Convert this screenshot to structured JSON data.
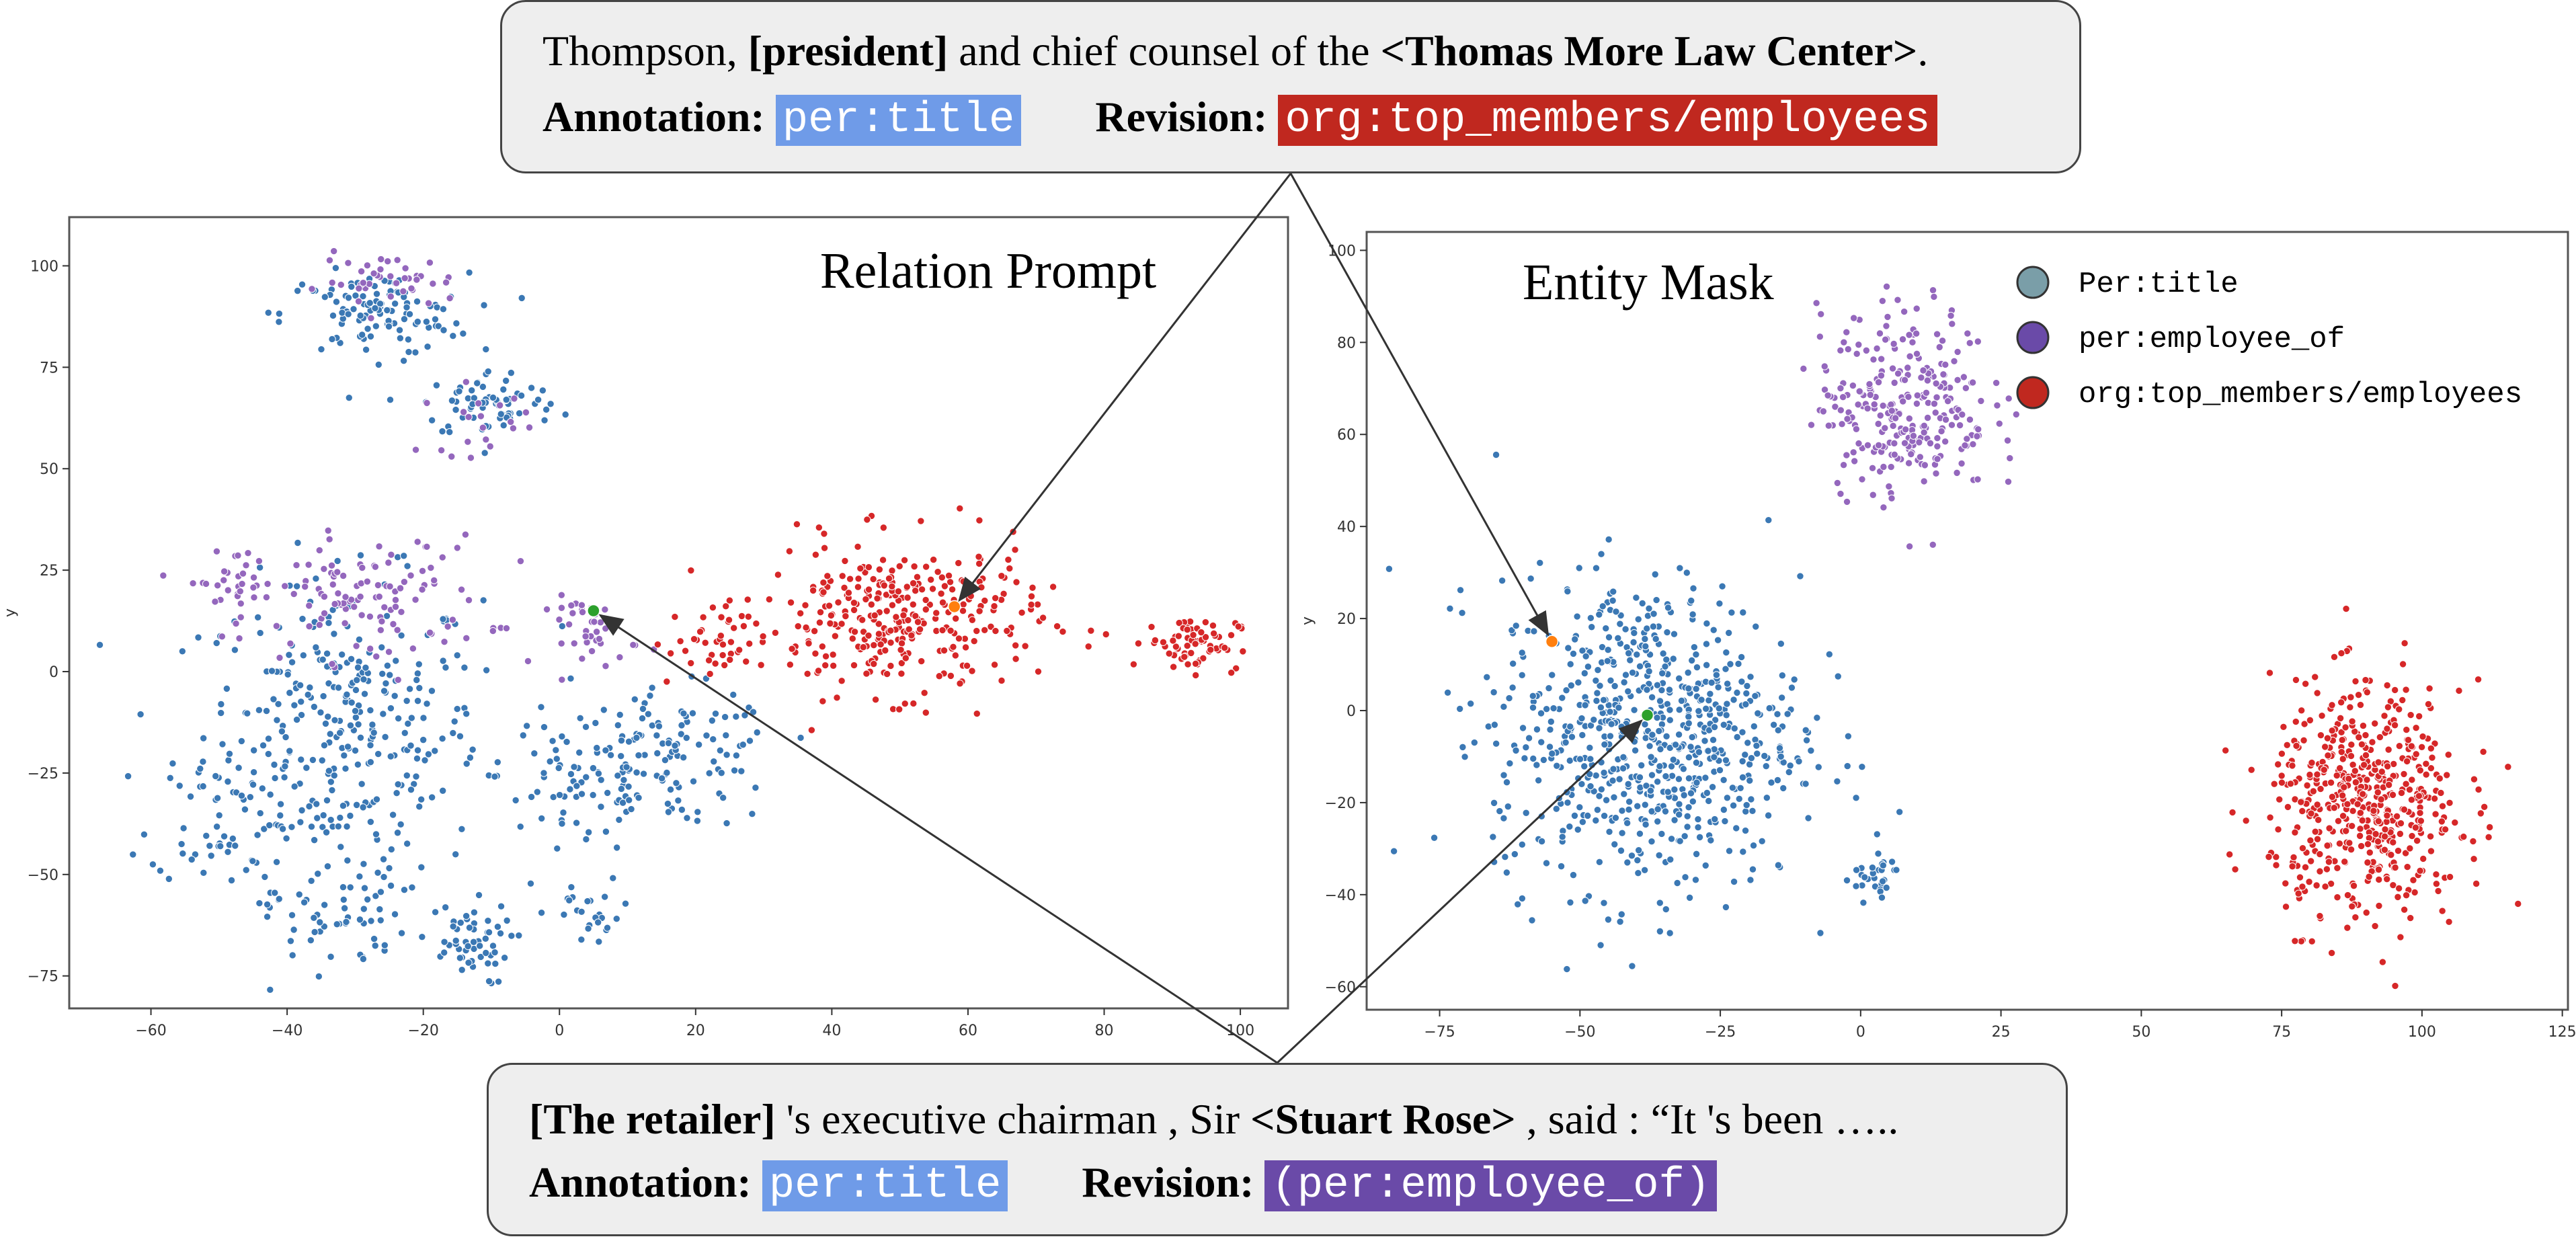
{
  "colors": {
    "blue": "#3b78b4",
    "purple": "#9467bd",
    "red": "#d62728",
    "green": "#2ca02c",
    "orange": "#ff7f0e",
    "annotation_tag": "#6f9be8",
    "revision_tag_red": "#c0281f",
    "revision_tag_purple": "#6a4aa8"
  },
  "top_callout": {
    "sentence_prefix": "Thompson, ",
    "sentence_subject": "[president]",
    "sentence_middle": " and chief counsel of the ",
    "sentence_object": "<Thomas More Law Center>",
    "sentence_suffix": ".",
    "annotation_label": "Annotation: ",
    "annotation_value": "per:title",
    "revision_label": "Revision: ",
    "revision_value": "org:top_members/employees"
  },
  "bottom_callout": {
    "sentence_subject": "[The retailer]",
    "sentence_middle": " 's executive chairman , Sir ",
    "sentence_object": "<Stuart Rose>",
    "sentence_suffix": " , said : “It 's been …..",
    "annotation_label": "Annotation: ",
    "annotation_value": "per:title",
    "revision_label": "Revision: ",
    "revision_value": "(per:employee_of)"
  },
  "chart_data": [
    {
      "type": "scatter",
      "title": "Relation Prompt",
      "xlabel": "",
      "ylabel": "y",
      "xlim": [
        -72,
        107
      ],
      "ylim": [
        -83,
        112
      ],
      "xticks": [
        "−60",
        "−40",
        "−20",
        "0",
        "20",
        "40",
        "60",
        "80",
        "100"
      ],
      "xtick_values": [
        -60,
        -40,
        -20,
        0,
        20,
        40,
        60,
        80,
        100
      ],
      "yticks": [
        "−75",
        "−50",
        "−25",
        "0",
        "25",
        "50",
        "75",
        "100"
      ],
      "ytick_values": [
        -75,
        -50,
        -25,
        0,
        25,
        50,
        75,
        100
      ],
      "clusters": [
        {
          "series": "per:title",
          "cx": -32,
          "cy": -15,
          "sx": 12,
          "sy": 22,
          "n": 330
        },
        {
          "series": "per:title",
          "cx": 3,
          "cy": -25,
          "sx": 7,
          "sy": 13,
          "n": 60
        },
        {
          "series": "per:title",
          "cx": 17,
          "cy": -22,
          "sx": 9,
          "sy": 10,
          "n": 120
        },
        {
          "series": "per:title",
          "cx": -27,
          "cy": 88,
          "sx": 8,
          "sy": 6,
          "n": 110
        },
        {
          "series": "per:title",
          "cx": -10,
          "cy": 66,
          "sx": 6,
          "sy": 5,
          "n": 70
        },
        {
          "series": "per:title",
          "cx": -50,
          "cy": -35,
          "sx": 6,
          "sy": 10,
          "n": 45
        },
        {
          "series": "per:title",
          "cx": -14,
          "cy": -67,
          "sx": 4,
          "sy": 6,
          "n": 55
        },
        {
          "series": "per:title",
          "cx": -33,
          "cy": -60,
          "sx": 6,
          "sy": 8,
          "n": 55
        },
        {
          "series": "per:title",
          "cx": 5,
          "cy": -60,
          "sx": 4,
          "sy": 5,
          "n": 25
        },
        {
          "series": "per:employee_of",
          "cx": -28,
          "cy": 18,
          "sx": 10,
          "sy": 9,
          "n": 110
        },
        {
          "series": "per:employee_of",
          "cx": -48,
          "cy": 22,
          "sx": 4,
          "sy": 5,
          "n": 30
        },
        {
          "series": "per:employee_of",
          "cx": -25,
          "cy": 96,
          "sx": 6,
          "sy": 4,
          "n": 40
        },
        {
          "series": "per:employee_of",
          "cx": 5,
          "cy": 10,
          "sx": 4,
          "sy": 5,
          "n": 40
        },
        {
          "series": "per:employee_of",
          "cx": -12,
          "cy": 62,
          "sx": 5,
          "sy": 5,
          "n": 20
        },
        {
          "series": "org:top_members/employees",
          "cx": 50,
          "cy": 13,
          "sx": 12,
          "sy": 11,
          "n": 320
        },
        {
          "series": "org:top_members/employees",
          "cx": 93,
          "cy": 7,
          "sx": 4,
          "sy": 4,
          "n": 70
        },
        {
          "series": "org:top_members/employees",
          "cx": 22,
          "cy": 7,
          "sx": 5,
          "sy": 6,
          "n": 40
        }
      ],
      "highlights": [
        {
          "name": "green-point",
          "x": 5,
          "y": 15
        },
        {
          "name": "orange-point",
          "x": 58,
          "y": 16
        }
      ]
    },
    {
      "type": "scatter",
      "title": "Entity Mask",
      "xlabel": "",
      "ylabel": "y",
      "xlim": [
        -88,
        126
      ],
      "ylim": [
        -65,
        104
      ],
      "xticks": [
        "−75",
        "−50",
        "−25",
        "0",
        "25",
        "50",
        "75",
        "100",
        "125"
      ],
      "xtick_values": [
        -75,
        -50,
        -25,
        0,
        25,
        50,
        75,
        100,
        125
      ],
      "yticks": [
        "−60",
        "−40",
        "−20",
        "0",
        "20",
        "40",
        "60",
        "80",
        "100"
      ],
      "ytick_values": [
        -60,
        -40,
        -20,
        0,
        20,
        40,
        60,
        80,
        100
      ],
      "legend_position": "top-right",
      "legend": [
        "Per:title",
        "per:employee_of",
        "org:top_members/employees"
      ],
      "legend_colors": [
        "#7a9ea8",
        "#6a4aa8",
        "#c0281f"
      ],
      "clusters": [
        {
          "series": "per:title",
          "cx": -38,
          "cy": -5,
          "sx": 16,
          "sy": 20,
          "n": 720
        },
        {
          "series": "per:title",
          "cx": 2,
          "cy": -36,
          "sx": 3,
          "sy": 3,
          "n": 30
        },
        {
          "series": "per:employee_of",
          "cx": 8,
          "cy": 67,
          "sx": 9,
          "sy": 12,
          "n": 280
        },
        {
          "series": "org:top_members/employees",
          "cx": 90,
          "cy": -20,
          "sx": 10,
          "sy": 15,
          "n": 520
        }
      ],
      "highlights": [
        {
          "name": "orange-point",
          "x": -55,
          "y": 15
        },
        {
          "name": "green-point",
          "x": -38,
          "y": -1
        }
      ]
    }
  ]
}
